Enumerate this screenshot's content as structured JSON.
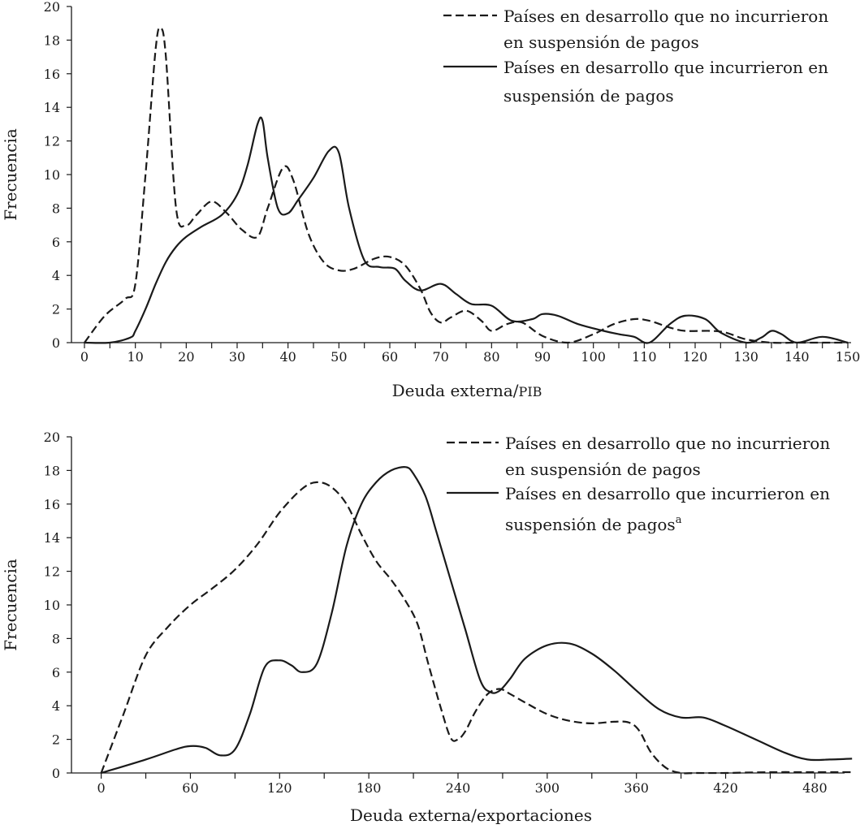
{
  "chart_data": [
    {
      "type": "line",
      "xlabel": "Deuda externa/",
      "xlabel_suffix": "PIB",
      "ylabel": "Frecuencia",
      "xlim": [
        0,
        150
      ],
      "ylim": [
        0,
        20
      ],
      "x_ticks": [
        0,
        10,
        20,
        30,
        40,
        50,
        60,
        70,
        80,
        90,
        100,
        110,
        120,
        130,
        140,
        150
      ],
      "y_ticks": [
        0,
        2,
        4,
        6,
        8,
        10,
        12,
        14,
        16,
        18,
        20
      ],
      "legend_position": "top-right",
      "series": [
        {
          "name": "Países en desarrollo que no incurrieron en suspensión de pagos",
          "legend_lines": [
            "Países en desarrollo que no incurrieron",
            "en suspensión de pagos"
          ],
          "style": "dashed",
          "x": [
            0,
            4,
            8,
            10,
            12,
            14,
            15,
            16,
            18,
            20,
            22,
            25,
            28,
            31,
            34,
            36,
            39,
            41,
            44,
            47,
            50,
            53,
            57,
            60,
            63,
            66,
            68,
            70,
            72,
            75,
            78,
            80,
            83,
            86,
            90,
            95,
            100,
            104,
            108,
            111,
            115,
            118,
            123,
            126,
            130,
            135,
            140,
            145,
            150
          ],
          "y": [
            0,
            1.6,
            2.6,
            3.5,
            10,
            17.5,
            18.7,
            17,
            8,
            7,
            7.6,
            8.4,
            7.7,
            6.7,
            6.3,
            8,
            10.4,
            9.7,
            6.5,
            4.8,
            4.3,
            4.4,
            5,
            5.1,
            4.6,
            3.2,
            1.8,
            1.2,
            1.5,
            1.9,
            1.3,
            0.7,
            1.1,
            1.2,
            0.4,
            0,
            0.5,
            1.1,
            1.4,
            1.3,
            0.9,
            0.7,
            0.7,
            0.6,
            0.2,
            0,
            0,
            0,
            0
          ]
        },
        {
          "name": "Países en desarrollo que incurrieron en suspensión de pagos",
          "legend_lines": [
            "Países en desarrollo que incurrieron en",
            "suspensión de pagos"
          ],
          "style": "solid",
          "x": [
            0,
            5,
            9,
            10,
            12,
            14,
            16,
            18,
            20,
            23,
            27,
            30,
            32,
            34,
            35,
            36,
            38,
            40,
            42,
            45,
            48,
            50,
            52,
            55,
            58,
            61,
            63,
            66,
            70,
            73,
            76,
            80,
            84,
            88,
            90,
            93,
            97,
            102,
            105,
            108,
            111,
            115,
            118,
            122,
            125,
            130,
            133,
            135,
            137,
            140,
            145,
            150
          ],
          "y": [
            0,
            0,
            0.3,
            0.7,
            2,
            3.5,
            4.8,
            5.7,
            6.3,
            6.9,
            7.6,
            8.8,
            10.5,
            13,
            13.2,
            11,
            8,
            7.7,
            8.5,
            9.8,
            11.4,
            11.3,
            8,
            4.9,
            4.5,
            4.4,
            3.7,
            3.1,
            3.5,
            2.9,
            2.3,
            2.2,
            1.3,
            1.4,
            1.7,
            1.6,
            1.1,
            0.7,
            0.5,
            0.35,
            0,
            1.1,
            1.6,
            1.4,
            0.6,
            0,
            0.3,
            0.7,
            0.5,
            0,
            0.35,
            0
          ]
        }
      ]
    },
    {
      "type": "line",
      "xlabel": "Deuda externa/exportaciones",
      "ylabel": "Frecuencia",
      "xlim": [
        -20,
        500
      ],
      "ylim": [
        0,
        20
      ],
      "x_ticks": [
        0,
        60,
        120,
        180,
        240,
        300,
        360,
        420,
        480
      ],
      "y_ticks": [
        0,
        2,
        4,
        6,
        8,
        10,
        12,
        14,
        16,
        18,
        20
      ],
      "legend_position": "top-right",
      "series": [
        {
          "name": "Países en desarrollo que no incurrieron en suspensión de pagos",
          "legend_lines": [
            "Países en desarrollo que no incurrieron",
            "en suspensión de pagos"
          ],
          "style": "dashed",
          "x": [
            0,
            15,
            30,
            45,
            60,
            75,
            90,
            105,
            120,
            135,
            145,
            155,
            165,
            175,
            185,
            195,
            205,
            213,
            220,
            228,
            235,
            240,
            245,
            252,
            260,
            268,
            275,
            285,
            300,
            315,
            330,
            345,
            355,
            362,
            370,
            380,
            390,
            400,
            420,
            450,
            480,
            505
          ],
          "y": [
            0,
            3.5,
            7,
            8.7,
            10,
            11,
            12.1,
            13.6,
            15.5,
            16.9,
            17.3,
            17,
            16,
            14.2,
            12.6,
            11.5,
            10.2,
            8.8,
            6.5,
            4,
            2.1,
            2,
            2.5,
            3.7,
            4.7,
            5,
            4.7,
            4.2,
            3.5,
            3.1,
            2.95,
            3.05,
            3,
            2.5,
            1.2,
            0.3,
            0,
            0,
            0,
            0.05,
            0.05,
            0.05
          ]
        },
        {
          "name": "Países en desarrollo que incurrieron en suspensión de pagos",
          "legend_lines": [
            "Países en desarrollo que incurrieron en",
            "suspensión de pagos"
          ],
          "legend_superscript": "a",
          "style": "solid",
          "x": [
            0,
            30,
            50,
            60,
            70,
            80,
            90,
            100,
            110,
            120,
            128,
            135,
            145,
            155,
            165,
            175,
            185,
            195,
            205,
            210,
            218,
            225,
            235,
            245,
            255,
            262,
            268,
            275,
            285,
            300,
            315,
            330,
            345,
            360,
            375,
            390,
            405,
            420,
            440,
            460,
            475,
            490,
            505
          ],
          "y": [
            0,
            0.8,
            1.4,
            1.6,
            1.5,
            1.05,
            1.4,
            3.5,
            6.3,
            6.7,
            6.4,
            6,
            6.5,
            9.5,
            13.5,
            16,
            17.3,
            18,
            18.2,
            17.8,
            16.5,
            14.5,
            11.5,
            8.5,
            5.5,
            4.8,
            4.9,
            5.6,
            6.8,
            7.6,
            7.7,
            7.1,
            6.1,
            4.9,
            3.8,
            3.3,
            3.3,
            2.8,
            2,
            1.2,
            0.8,
            0.8,
            0.85
          ]
        }
      ]
    }
  ]
}
